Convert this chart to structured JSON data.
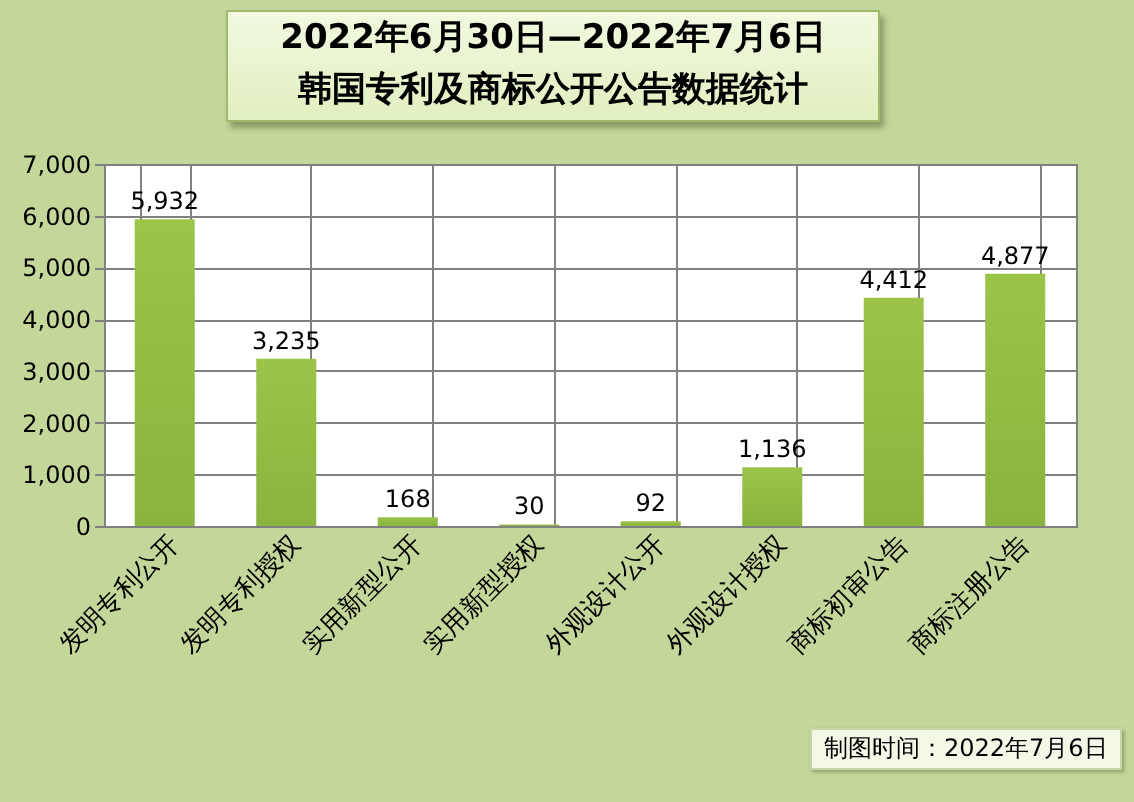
{
  "chart_data": {
    "type": "bar",
    "title": "2022年6月30日—2022年7月6日",
    "subtitle": "韩国专利及商标公开公告数据统计",
    "categories": [
      "发明专利公开",
      "发明专利授权",
      "实用新型公开",
      "实用新型授权",
      "外观设计公开",
      "外观设计授权",
      "商标初审公告",
      "商标注册公告"
    ],
    "values": [
      5932,
      3235,
      168,
      30,
      92,
      1136,
      4412,
      4877
    ],
    "value_labels": [
      "5,932",
      "3,235",
      "168",
      "30",
      "92",
      "1,136",
      "4,412",
      "4,877"
    ],
    "color": "#8ab33f",
    "ylim": [
      0,
      7000
    ],
    "yticks": [
      0,
      {
        "value": 1000,
        "label": "1,000"
      },
      {
        "value": 2000,
        "label": "2,000"
      },
      {
        "value": 3000,
        "label": "3,000"
      },
      {
        "value": 4000,
        "label": "4,000"
      },
      {
        "value": 5000,
        "label": "5,000"
      },
      {
        "value": 6000,
        "label": "6,000"
      },
      {
        "value": 7000,
        "label": "7,000"
      }
    ],
    "grid": true,
    "annotations": [
      "制图时间：2022年7月6日"
    ]
  }
}
